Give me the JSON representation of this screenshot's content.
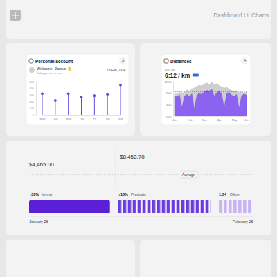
{
  "header": {
    "title": "Dashboard UI Charts"
  },
  "chart_data": [
    {
      "type": "lollipop",
      "title": "Personal account",
      "subtitle": "Welcome, James 👋",
      "annotations": [
        "Today you are in here",
        "16 Feb, 2024"
      ],
      "categories": [
        "Mon",
        "Tue",
        "Wed",
        "Thu",
        "Fri",
        "Sat",
        "Sun"
      ],
      "values": [
        320,
        220,
        320,
        270,
        290,
        310,
        450
      ],
      "color": "#6b46e0",
      "marker": "circle",
      "ylim": [
        0,
        500
      ],
      "yticks": [
        0,
        100,
        200,
        300,
        400,
        500
      ],
      "grid": false
    },
    {
      "type": "area",
      "title": "Distances",
      "annotations": [
        "Avg CAP",
        "6:12 / km"
      ],
      "categories": [
        "Jan",
        null,
        null,
        null,
        null,
        null,
        "Feb",
        null,
        null,
        null,
        null,
        null,
        "Mar",
        null,
        null,
        null,
        null,
        null,
        "Apr",
        null,
        null,
        null,
        null,
        null,
        "May",
        null,
        null,
        null,
        null,
        "Jun"
      ],
      "series": [
        {
          "color": "#cfcfcf",
          "values": [
            8.0,
            7.6,
            8.4,
            7.9,
            8.6,
            9.2,
            8.8,
            9.5,
            9.9,
            10.3,
            10.8,
            10.5,
            11.2,
            11.6,
            11.1,
            11.8,
            10.9,
            11.3,
            10.6,
            10.2,
            9.8,
            10.1,
            9.4,
            9.0,
            8.7,
            8.9,
            8.3,
            8.6,
            8.1,
            8.4
          ]
        },
        {
          "color": "#8b63f0",
          "values": [
            7.2,
            6.8,
            7.5,
            3.1,
            7.0,
            7.6,
            6.9,
            7.8,
            2.4,
            7.3,
            8.1,
            7.5,
            8.6,
            9.0,
            8.8,
            9.4,
            7.0,
            8.2,
            8.9,
            7.7,
            3.0,
            7.9,
            8.3,
            7.4,
            6.9,
            7.6,
            2.8,
            7.1,
            7.8,
            7.3
          ]
        }
      ],
      "average": 8.5,
      "ylim": [
        0,
        12
      ],
      "yticks": [
        {
          "value": 0,
          "label": "0:00"
        },
        {
          "value": 4,
          "label": "4:00"
        },
        {
          "value": 8,
          "label": "8:00"
        },
        {
          "value": 12,
          "label": "12:00"
        }
      ],
      "grid": false
    },
    {
      "type": "bar",
      "orientation": "horizontal",
      "stacked": true,
      "tick_labels": "x",
      "annotations": [
        "$4,465.00",
        "$8,458.70",
        "Average"
      ],
      "series": [
        {
          "name": "Invest",
          "change": "+23%",
          "color": "#5a1fd6",
          "values": [
            38
          ]
        },
        {
          "name": "Products",
          "change": "+12%",
          "color": "#6a3ce0",
          "values": [
            45
          ]
        },
        {
          "name": "Other",
          "change": "1.24",
          "color": "#c6b2f4",
          "values": [
            17
          ]
        }
      ],
      "xlim": [
        0,
        100
      ],
      "xticks": [
        {
          "value": 0,
          "label": "January 26"
        },
        {
          "value": 100,
          "label": "February 26"
        }
      ]
    }
  ]
}
